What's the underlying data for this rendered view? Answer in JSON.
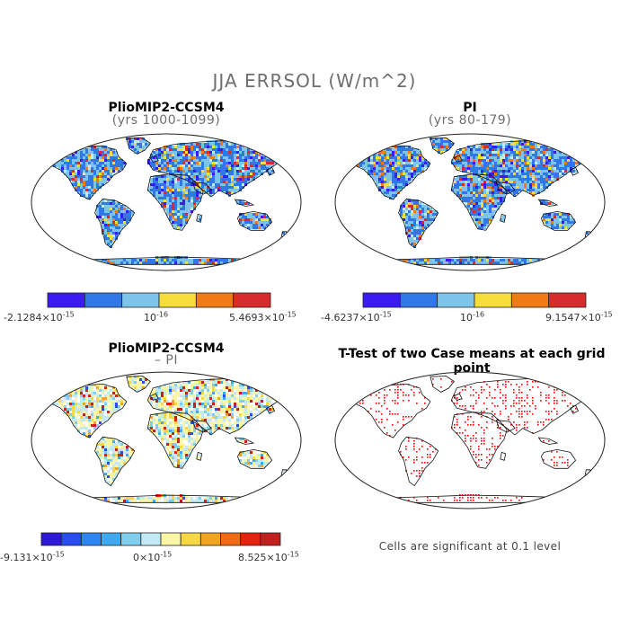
{
  "title": "JJA ERRSOL (W/m^2)",
  "panels": [
    {
      "title": "PlioMIP2-CCSM4",
      "subtitle": "(yrs 1000-1099)",
      "palette": "seq6",
      "colorbar": {
        "colors": [
          "#3a1cf2",
          "#2f78e6",
          "#7cc4ea",
          "#f5dd3c",
          "#f07a16",
          "#d62c2c"
        ],
        "labels": [
          "-2.1284×10^-15",
          "10^-16",
          "5.4693×10^-15"
        ]
      }
    },
    {
      "title": "PI",
      "subtitle": "(yrs 80-179)",
      "palette": "seq6",
      "colorbar": {
        "colors": [
          "#3a1cf2",
          "#2f78e6",
          "#7cc4ea",
          "#f5dd3c",
          "#f07a16",
          "#d62c2c"
        ],
        "labels": [
          "-4.6237×10^-15",
          "10^-16",
          "9.1547×10^-15"
        ]
      }
    },
    {
      "title": "PlioMIP2-CCSM4",
      "subtitle": "– PI",
      "palette": "div12",
      "colorbar": {
        "colors": [
          "#2e1ad6",
          "#2a4df0",
          "#2e86f2",
          "#3fa8ee",
          "#7fcdef",
          "#c3e9f5",
          "#fbf5a8",
          "#f7d743",
          "#f3a521",
          "#ef6a13",
          "#e2210e",
          "#c1201e"
        ],
        "labels": [
          "-9.131×10^-15",
          "0×10^-15",
          "8.525×10^-15"
        ]
      }
    },
    {
      "title": "T-Test of two Case means at each grid point",
      "subtitle": "",
      "palette": "ttest",
      "note": "Cells are significant at 0.1 level"
    }
  ]
}
